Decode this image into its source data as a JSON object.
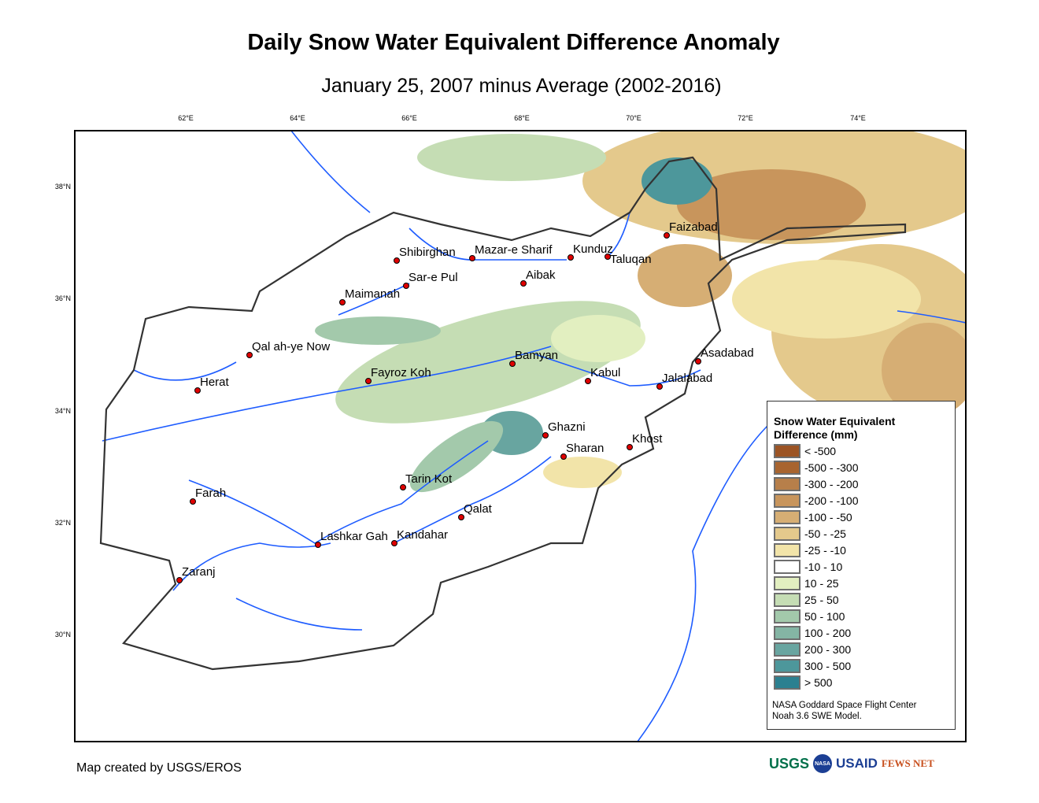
{
  "title": "Daily Snow Water Equivalent Difference Anomaly",
  "subtitle": "January 25, 2007 minus Average (2002-2016)",
  "axes": {
    "longitudes": [
      "62°E",
      "64°E",
      "66°E",
      "68°E",
      "70°E",
      "72°E",
      "74°E"
    ],
    "latitudes": [
      "38°N",
      "36°N",
      "34°N",
      "32°N",
      "30°N"
    ]
  },
  "cities": [
    "Shibirghan",
    "Mazar-e Sharif",
    "Kunduz",
    "Taluqan",
    "Faizabad",
    "Sar-e Pul",
    "Aibak",
    "Maimanah",
    "Qal ah-ye Now",
    "Bamyan",
    "Asadabad",
    "Kabul",
    "Jalalabad",
    "Fayroz Koh",
    "Herat",
    "Ghazni",
    "Khost",
    "Sharan",
    "Tarin Kot",
    "Farah",
    "Qalat",
    "Lashkar Gah",
    "Kandahar",
    "Zaranj"
  ],
  "legend": {
    "title_line1": "Snow Water Equivalent",
    "title_line2": "Difference (mm)",
    "items": [
      {
        "label": "< -500",
        "color": "#9c5424"
      },
      {
        "label": "-500 - -300",
        "color": "#a8642f"
      },
      {
        "label": "-300 - -200",
        "color": "#b77f4a"
      },
      {
        "label": "-200 - -100",
        "color": "#c8955c"
      },
      {
        "label": "-100 - -50",
        "color": "#d6ae74"
      },
      {
        "label": "-50 - -25",
        "color": "#e4c98c"
      },
      {
        "label": "-25 - -10",
        "color": "#f2e4a9"
      },
      {
        "label": "-10 - 10",
        "color": "#ffffff"
      },
      {
        "label": "10 - 25",
        "color": "#e2efc0"
      },
      {
        "label": "25 - 50",
        "color": "#c5ddb4"
      },
      {
        "label": "50 - 100",
        "color": "#a3c9ab"
      },
      {
        "label": "100 - 200",
        "color": "#84b5a4"
      },
      {
        "label": "200 - 300",
        "color": "#68a5a0"
      },
      {
        "label": "300 - 500",
        "color": "#4d979b"
      },
      {
        "label": "> 500",
        "color": "#2b8090"
      }
    ],
    "note_line1": "NASA Goddard Space Flight Center",
    "note_line2": "Noah 3.6 SWE Model."
  },
  "credit": "Map created by USGS/EROS",
  "logos": [
    "USGS",
    "NASA",
    "USAID",
    "FEWS NET"
  ]
}
